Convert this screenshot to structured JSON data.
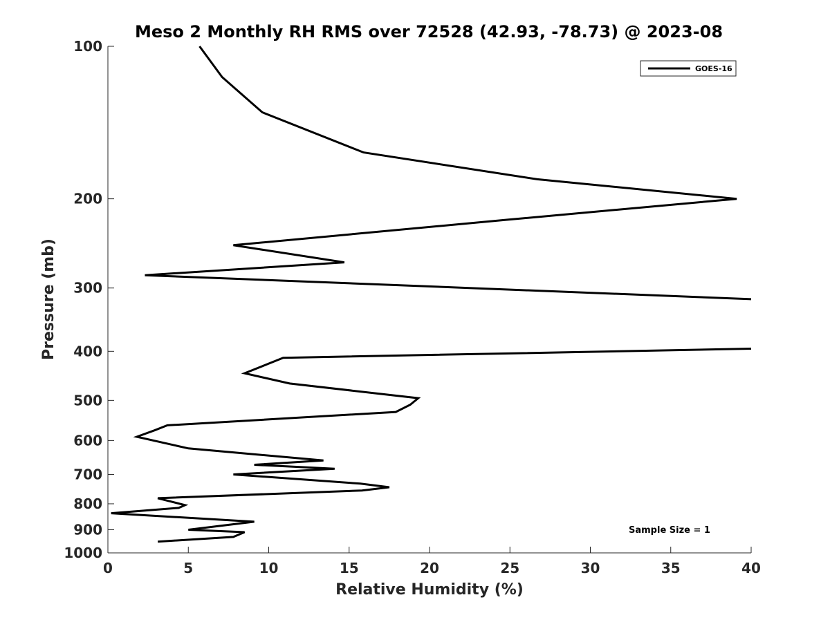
{
  "chart_data": {
    "type": "line",
    "title": "Meso 2 Monthly RH RMS over 72528 (42.93, -78.73) @ 2023-08",
    "xlabel": "Relative Humidity (%)",
    "ylabel": "Pressure (mb)",
    "xlim": [
      0,
      40
    ],
    "ylim": [
      100,
      1000
    ],
    "y_scale": "log",
    "y_reversed": true,
    "grid": false,
    "x_ticks": [
      0,
      5,
      10,
      15,
      20,
      25,
      30,
      35,
      40
    ],
    "y_ticks": [
      100,
      200,
      300,
      400,
      500,
      600,
      700,
      800,
      900,
      1000
    ],
    "legend": {
      "position": "top-right",
      "entries": [
        "GOES-16"
      ]
    },
    "annotations": [
      "Sample Size = 1"
    ],
    "series": [
      {
        "name": "GOES-16",
        "color": "#000000",
        "x": [
          5.7,
          7.1,
          9.6,
          15.9,
          26.7,
          39.1,
          24.8,
          7.8,
          14.7,
          2.3,
          40.5,
          40.5,
          10.9,
          8.5,
          11.3,
          19.3,
          18.8,
          17.9,
          3.7,
          2.9,
          1.8,
          5.0,
          13.4,
          9.1,
          14.1,
          7.8,
          15.7,
          17.5,
          15.8,
          3.1,
          4.8,
          4.4,
          0.2,
          9.1,
          5.0,
          8.5,
          7.8,
          3.1
        ],
        "y": [
          100,
          115,
          135,
          162,
          183,
          200,
          220,
          247,
          267,
          283,
          316,
          395,
          412,
          442,
          463,
          495,
          510,
          527,
          560,
          573,
          590,
          622,
          657,
          670,
          682,
          700,
          730,
          742,
          753,
          780,
          805,
          815,
          835,
          868,
          900,
          910,
          930,
          950
        ]
      }
    ]
  }
}
